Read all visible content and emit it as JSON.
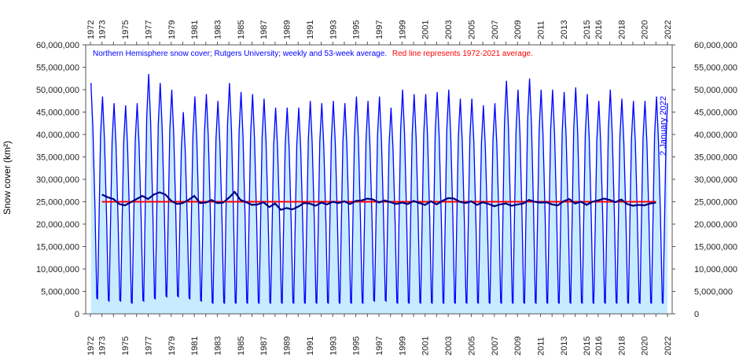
{
  "chart_data": {
    "type": "line",
    "title_part1": "Northern Hemisphere snow cover; Rutgers University; weekly and 53-week average.",
    "title_part2": "Red line represents 1972-2021 average.",
    "ylabel": "Snow cover (km²)",
    "side_label": "2 January 2022",
    "xlim": [
      1972,
      2022
    ],
    "ylim": [
      0,
      60000000
    ],
    "x_tick_labels_top": [
      "1972",
      "1973",
      "1975",
      "1977",
      "1979",
      "1981",
      "1983",
      "1985",
      "1987",
      "1989",
      "1991",
      "1993",
      "1995",
      "1997",
      "1999",
      "2001",
      "2003",
      "2005",
      "2007",
      "2009",
      "2011",
      "2013",
      "2015",
      "2016",
      "2018",
      "2020",
      "2022"
    ],
    "x_tick_labels_bottom": [
      "1972",
      "1973",
      "1975",
      "1977",
      "1979",
      "1981",
      "1983",
      "1985",
      "1987",
      "1989",
      "1991",
      "1993",
      "1995",
      "1997",
      "1999",
      "2001",
      "2003",
      "2005",
      "2007",
      "2009",
      "2011",
      "2013",
      "2015",
      "2016",
      "2018",
      "2020",
      "2022"
    ],
    "y_tick_labels": [
      "0",
      "5,000,000",
      "10,000,000",
      "15,000,000",
      "20,000,000",
      "25,000,000",
      "30,000,000",
      "35,000,000",
      "40,000,000",
      "45,000,000",
      "50,000,000",
      "55,000,000",
      "60,000,000"
    ],
    "average_value": 25000000,
    "series": [
      {
        "color": "#0000ff",
        "years": [
          1972,
          1973,
          1974,
          1975,
          1976,
          1977,
          1978,
          1979,
          1980,
          1981,
          1982,
          1983,
          1984,
          1985,
          1986,
          1987,
          1988,
          1989,
          1990,
          1991,
          1992,
          1993,
          1994,
          1995,
          1996,
          1997,
          1998,
          1999,
          2000,
          2001,
          2002,
          2003,
          2004,
          2005,
          2006,
          2007,
          2008,
          2009,
          2010,
          2011,
          2012,
          2013,
          2014,
          2015,
          2016,
          2017,
          2018,
          2019,
          2020,
          2021
        ],
        "winter_peaks": [
          51500000,
          48500000,
          47000000,
          46500000,
          47000000,
          53500000,
          51500000,
          50000000,
          45000000,
          48500000,
          49000000,
          47500000,
          51500000,
          49500000,
          49000000,
          48000000,
          46000000,
          46000000,
          46000000,
          47500000,
          47000000,
          47500000,
          47000000,
          48500000,
          47500000,
          48500000,
          46000000,
          50000000,
          49000000,
          49000000,
          49500000,
          50000000,
          48000000,
          48000000,
          46500000,
          47000000,
          52000000,
          50000000,
          52500000,
          50000000,
          50000000,
          49500000,
          50500000,
          49000000,
          47500000,
          50000000,
          48000000,
          47500000,
          47500000,
          48500000
        ],
        "summer_lows": [
          3500000,
          3000000,
          3000000,
          2500000,
          3000000,
          3500000,
          4000000,
          4000000,
          3500000,
          3000000,
          2500000,
          2500000,
          2500000,
          2500000,
          2500000,
          2500000,
          2500000,
          2500000,
          2500000,
          2500000,
          2500000,
          2500000,
          2500000,
          2500000,
          3000000,
          3000000,
          2500000,
          2500000,
          2500000,
          2500000,
          2500000,
          2500000,
          2500000,
          2500000,
          2500000,
          2500000,
          2500000,
          2500000,
          2500000,
          2500000,
          2500000,
          2500000,
          2500000,
          2500000,
          2500000,
          2500000,
          2500000,
          2500000,
          2500000,
          2500000
        ]
      },
      {
        "color": "#000080",
        "points": [
          [
            1973.0,
            26600000
          ],
          [
            1973.5,
            26000000
          ],
          [
            1974.0,
            25600000
          ],
          [
            1974.5,
            24500000
          ],
          [
            1975.0,
            24200000
          ],
          [
            1975.5,
            24900000
          ],
          [
            1976.0,
            25600000
          ],
          [
            1976.5,
            26300000
          ],
          [
            1977.0,
            25600000
          ],
          [
            1977.5,
            26600000
          ],
          [
            1978.0,
            27100000
          ],
          [
            1978.5,
            26600000
          ],
          [
            1979.0,
            25200000
          ],
          [
            1979.5,
            24500000
          ],
          [
            1980.0,
            24700000
          ],
          [
            1980.5,
            25400000
          ],
          [
            1981.0,
            26300000
          ],
          [
            1981.5,
            24700000
          ],
          [
            1982.0,
            24800000
          ],
          [
            1982.5,
            25400000
          ],
          [
            1983.0,
            24700000
          ],
          [
            1983.5,
            24800000
          ],
          [
            1984.0,
            25900000
          ],
          [
            1984.5,
            27200000
          ],
          [
            1985.0,
            25400000
          ],
          [
            1985.5,
            24900000
          ],
          [
            1986.0,
            24300000
          ],
          [
            1986.5,
            24400000
          ],
          [
            1987.0,
            24900000
          ],
          [
            1987.5,
            23800000
          ],
          [
            1988.0,
            24600000
          ],
          [
            1988.5,
            23200000
          ],
          [
            1989.0,
            23600000
          ],
          [
            1989.5,
            23300000
          ],
          [
            1990.0,
            23900000
          ],
          [
            1990.5,
            24700000
          ],
          [
            1991.0,
            24600000
          ],
          [
            1991.5,
            24100000
          ],
          [
            1992.0,
            24800000
          ],
          [
            1992.5,
            24400000
          ],
          [
            1993.0,
            25000000
          ],
          [
            1993.5,
            24700000
          ],
          [
            1994.0,
            25100000
          ],
          [
            1994.5,
            24500000
          ],
          [
            1995.0,
            25200000
          ],
          [
            1995.5,
            25300000
          ],
          [
            1996.0,
            25700000
          ],
          [
            1996.5,
            25500000
          ],
          [
            1997.0,
            24800000
          ],
          [
            1997.5,
            25300000
          ],
          [
            1998.0,
            24900000
          ],
          [
            1998.5,
            24500000
          ],
          [
            1999.0,
            24800000
          ],
          [
            1999.5,
            24500000
          ],
          [
            2000.0,
            25200000
          ],
          [
            2000.5,
            24700000
          ],
          [
            2001.0,
            24300000
          ],
          [
            2001.5,
            25100000
          ],
          [
            2002.0,
            24400000
          ],
          [
            2002.5,
            25200000
          ],
          [
            2003.0,
            25800000
          ],
          [
            2003.5,
            25700000
          ],
          [
            2004.0,
            25000000
          ],
          [
            2004.5,
            24700000
          ],
          [
            2005.0,
            25100000
          ],
          [
            2005.5,
            24300000
          ],
          [
            2006.0,
            24900000
          ],
          [
            2006.5,
            24500000
          ],
          [
            2007.0,
            24000000
          ],
          [
            2007.5,
            24400000
          ],
          [
            2008.0,
            24600000
          ],
          [
            2008.5,
            24100000
          ],
          [
            2009.0,
            24400000
          ],
          [
            2009.5,
            24600000
          ],
          [
            2010.0,
            25400000
          ],
          [
            2010.5,
            25000000
          ],
          [
            2011.0,
            24800000
          ],
          [
            2011.5,
            24900000
          ],
          [
            2012.0,
            24400000
          ],
          [
            2012.5,
            24200000
          ],
          [
            2013.0,
            25100000
          ],
          [
            2013.5,
            25600000
          ],
          [
            2014.0,
            24600000
          ],
          [
            2014.5,
            25000000
          ],
          [
            2015.0,
            24300000
          ],
          [
            2015.5,
            25000000
          ],
          [
            2016.0,
            25300000
          ],
          [
            2016.5,
            25700000
          ],
          [
            2017.0,
            25400000
          ],
          [
            2017.5,
            24900000
          ],
          [
            2018.0,
            25500000
          ],
          [
            2018.5,
            24500000
          ],
          [
            2019.0,
            24100000
          ],
          [
            2019.5,
            24300000
          ],
          [
            2020.0,
            24200000
          ],
          [
            2020.5,
            24600000
          ],
          [
            2021.0,
            24800000
          ]
        ]
      },
      {
        "color": "#ff0000",
        "points": [
          [
            1973.0,
            25000000
          ],
          [
            2021.0,
            25000000
          ]
        ]
      }
    ],
    "colors": {
      "weekly_line": "#0000ff",
      "fill": "#c7ecff",
      "average_line": "#000080",
      "mean_line": "#ff0000",
      "title_part1": "#0000ff",
      "title_part2": "#ff0000",
      "side_label": "#0000ff"
    }
  }
}
